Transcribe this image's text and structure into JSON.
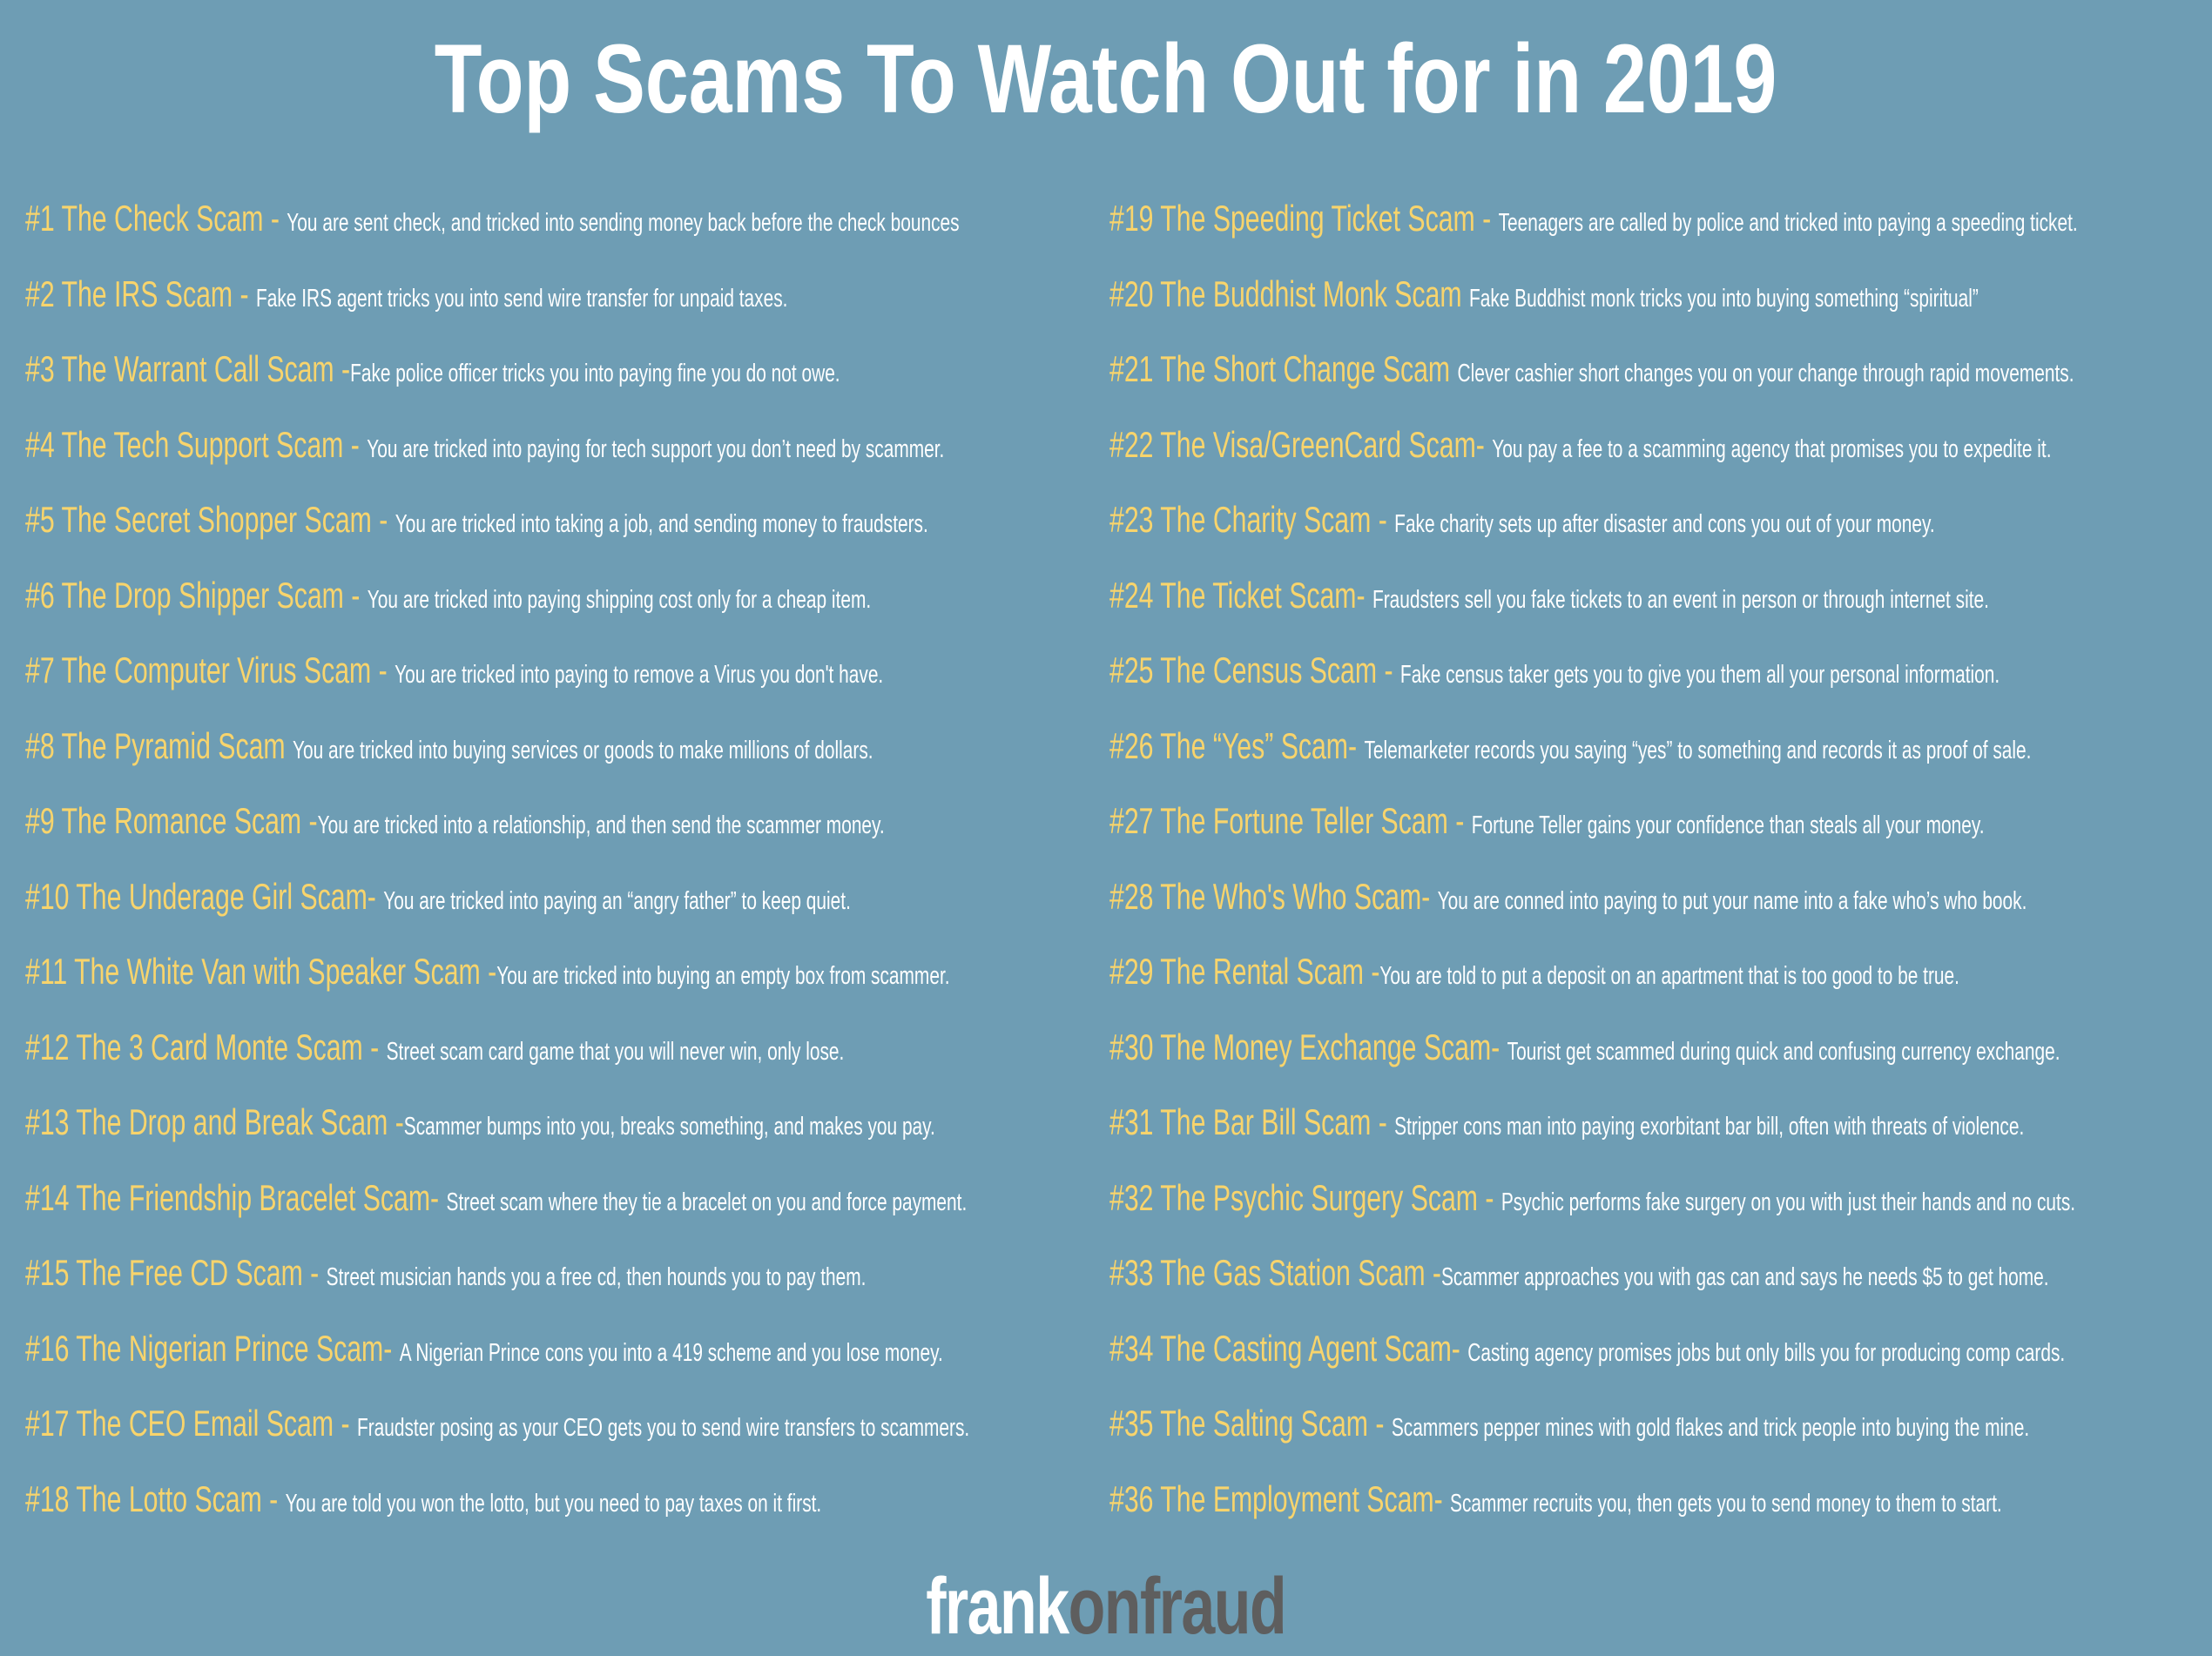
{
  "title": "Top Scams To Watch Out for in 2019",
  "colors": {
    "background": "#6e9db4",
    "heading": "#f8d46c",
    "text": "#ffffff",
    "logo_dark": "#5e5e5e"
  },
  "left_column": [
    {
      "heading": "#1 The Check Scam - ",
      "description": "You are sent check, and tricked into sending money back before the check bounces"
    },
    {
      "heading": "#2 The IRS Scam - ",
      "description": "Fake IRS agent tricks you into send wire transfer for unpaid taxes."
    },
    {
      "heading": "#3 The Warrant Call Scam -",
      "description": "Fake police officer tricks you into paying fine you do not owe."
    },
    {
      "heading": "#4 The Tech Support Scam - ",
      "description": "You are tricked into paying for tech support you don’t need by scammer."
    },
    {
      "heading": "#5 The Secret Shopper Scam - ",
      "description": "You are tricked into taking a job, and sending money to fraudsters."
    },
    {
      "heading": "#6 The Drop Shipper Scam - ",
      "description": "You are tricked into paying shipping cost only for a cheap item."
    },
    {
      "heading": "#7 The Computer Virus Scam - ",
      "description": "You are tricked into paying to remove a Virus you don't have."
    },
    {
      "heading": "#8 The Pyramid Scam ",
      "description": "You are tricked into buying services or goods to make millions of dollars."
    },
    {
      "heading": "#9 The Romance Scam -",
      "description": "You are tricked into a relationship, and then send the scammer money."
    },
    {
      "heading": "#10 The Underage Girl Scam- ",
      "description": "You are tricked into paying an “angry father” to keep quiet."
    },
    {
      "heading": "#11 The White Van with Speaker Scam -",
      "description": "You are tricked into buying an empty box from scammer."
    },
    {
      "heading": "#12 The 3 Card Monte Scam - ",
      "description": "Street scam card game that you will never win, only lose."
    },
    {
      "heading": "#13 The Drop and Break Scam -",
      "description": "Scammer bumps into you, breaks something, and makes you pay."
    },
    {
      "heading": "#14 The Friendship Bracelet Scam- ",
      "description": "Street scam where they tie a bracelet on you and force payment."
    },
    {
      "heading": "#15 The Free CD Scam - ",
      "description": "Street musician hands you a free cd, then hounds you to pay them."
    },
    {
      "heading": "#16 The Nigerian Prince Scam- ",
      "description": "A Nigerian Prince cons you into a 419 scheme and you lose money."
    },
    {
      "heading": "#17 The CEO Email Scam - ",
      "description": "Fraudster posing as your CEO gets you to send wire transfers to scammers."
    },
    {
      "heading": "#18 The Lotto Scam - ",
      "description": "You are told you won the lotto, but you need to pay taxes on it first."
    }
  ],
  "right_column": [
    {
      "heading": "#19 The Speeding Ticket Scam - ",
      "description": "Teenagers are called by police and tricked into paying a speeding ticket."
    },
    {
      "heading": "#20 The Buddhist Monk Scam ",
      "description": "Fake Buddhist monk tricks you into buying something “spiritual”"
    },
    {
      "heading": "#21 The Short Change Scam ",
      "description": "Clever cashier short changes you on your change through rapid movements."
    },
    {
      "heading": "#22 The Visa/GreenCard Scam- ",
      "description": "You pay a fee to a scamming agency that promises you to expedite it."
    },
    {
      "heading": "#23 The Charity Scam - ",
      "description": "Fake charity sets up after disaster and cons you out of your money."
    },
    {
      "heading": "#24 The Ticket Scam- ",
      "description": "Fraudsters sell you fake tickets to an event in person or through internet site."
    },
    {
      "heading": "#25 The Census Scam - ",
      "description": "Fake census taker gets you to give you them all your personal information."
    },
    {
      "heading": "#26 The “Yes” Scam- ",
      "description": "Telemarketer records you saying “yes” to something and records it as proof of sale."
    },
    {
      "heading": "#27 The Fortune Teller Scam - ",
      "description": "Fortune Teller gains your confidence than steals all your money."
    },
    {
      "heading": "#28 The Who's Who Scam- ",
      "description": "You are conned into paying to put your name into a fake who’s who book."
    },
    {
      "heading": "#29 The Rental Scam -",
      "description": "You are told to put a deposit on an apartment that is too good to be true."
    },
    {
      "heading": "#30 The Money Exchange Scam- ",
      "description": "Tourist get scammed during quick and confusing currency exchange."
    },
    {
      "heading": "#31 The Bar Bill Scam - ",
      "description": "Stripper cons man into paying exorbitant bar bill, often with threats of violence."
    },
    {
      "heading": "#32 The Psychic Surgery Scam - ",
      "description": "Psychic performs fake surgery on you with just their hands and no cuts."
    },
    {
      "heading": "#33 The Gas Station Scam -",
      "description": "Scammer approaches you with gas can and says he needs $5 to get home."
    },
    {
      "heading": "#34 The Casting Agent Scam- ",
      "description": "Casting agency promises jobs but only bills you for producing comp cards."
    },
    {
      "heading": "#35 The Salting Scam - ",
      "description": "Scammers pepper mines with gold flakes and trick people into buying the mine."
    },
    {
      "heading": "#36 The Employment Scam- ",
      "description": "Scammer recruits you, then gets you to send money to them to start."
    }
  ],
  "logo": {
    "part1": "frank",
    "part2": "onfraud"
  }
}
